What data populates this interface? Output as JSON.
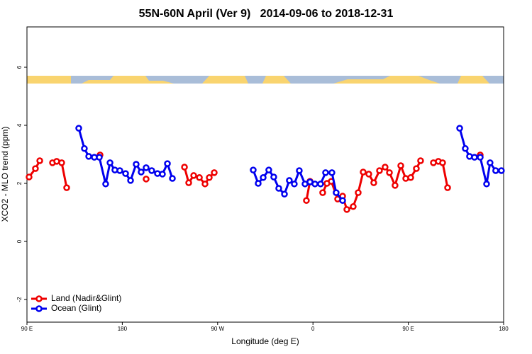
{
  "chart_data": {
    "type": "line",
    "title": "55N-60N April (Ver 9)   2014-09-06 to 2018-12-31",
    "x_label": "Longitude (deg E)",
    "y_label": "XCO2 - MLO trend (ppm)",
    "xlim": [
      90,
      540
    ],
    "ylim": [
      -2.78,
      7.39
    ],
    "xticks": [
      {
        "value": 90,
        "label": "90 E"
      },
      180,
      {
        "value": 270,
        "label": "90 W"
      },
      {
        "value": 360,
        "label": "0"
      },
      {
        "value": 450,
        "label": "90 E"
      },
      {
        "value": 540,
        "label": "180"
      }
    ],
    "yticks": [
      -2,
      0,
      2,
      4,
      6
    ],
    "legend": "bottom-left",
    "series": [
      {
        "name": "Land (Nadir&Glint)",
        "color": "#ee0000",
        "x": [
          92.0,
          98.0,
          102.1,
          null,
          114.1,
          118.1,
          122.8,
          127.5,
          null,
          159.0,
          null,
          202.5,
          null,
          238.7,
          242.7,
          247.4,
          252.8,
          258.1,
          262.1,
          266.8,
          null,
          353.8,
          357.2,
          null,
          369.2,
          373.2,
          377.3,
          383.3,
          388.0,
          392.0,
          398.0,
          402.7,
          407.4,
          412.7,
          417.4,
          422.8,
          428.1,
          432.2,
          437.5,
          442.9,
          447.6,
          452.3,
          457.6,
          461.6,
          null,
          473.7,
          478.4,
          482.4,
          487.1,
          null,
          517.9
        ],
        "values": [
          2.22,
          2.51,
          2.78,
          null,
          2.71,
          2.76,
          2.71,
          1.85,
          null,
          2.98,
          null,
          2.15,
          null,
          2.56,
          2.02,
          2.27,
          2.2,
          1.98,
          2.2,
          2.37,
          null,
          1.41,
          2.07,
          null,
          1.68,
          2.0,
          2.07,
          1.46,
          1.56,
          1.1,
          1.2,
          1.68,
          2.39,
          2.32,
          2.02,
          2.44,
          2.56,
          2.37,
          1.93,
          2.61,
          2.17,
          2.2,
          2.51,
          2.78,
          null,
          2.71,
          2.76,
          2.71,
          1.85,
          null,
          2.98
        ]
      },
      {
        "name": "Ocean (Glint)",
        "color": "#0000ee",
        "x": [
          138.9,
          144.2,
          148.3,
          153.6,
          158.3,
          164.3,
          168.4,
          173.0,
          177.7,
          183.1,
          187.8,
          193.1,
          197.8,
          202.5,
          207.8,
          213.2,
          217.9,
          222.6,
          227.3,
          null,
          303.6,
          308.3,
          313.0,
          318.3,
          323.0,
          327.7,
          333.1,
          337.7,
          342.4,
          347.1,
          352.5,
          357.2,
          361.9,
          367.2,
          371.9,
          377.9,
          381.9,
          388.0,
          null,
          498.5,
          503.8,
          507.8,
          512.5,
          517.9,
          523.9,
          527.2,
          532.5,
          537.9
        ],
        "values": [
          3.9,
          3.2,
          2.93,
          2.9,
          2.9,
          1.98,
          2.71,
          2.46,
          2.44,
          2.34,
          2.1,
          2.66,
          2.39,
          2.54,
          2.44,
          2.34,
          2.32,
          2.68,
          2.17,
          null,
          2.46,
          2.0,
          2.2,
          2.46,
          2.22,
          1.83,
          1.63,
          2.1,
          1.98,
          2.44,
          1.98,
          2.05,
          1.98,
          1.98,
          2.37,
          2.37,
          1.68,
          1.41,
          null,
          3.9,
          3.2,
          2.93,
          2.9,
          2.9,
          1.98,
          2.71,
          2.44,
          2.44
        ]
      }
    ]
  }
}
